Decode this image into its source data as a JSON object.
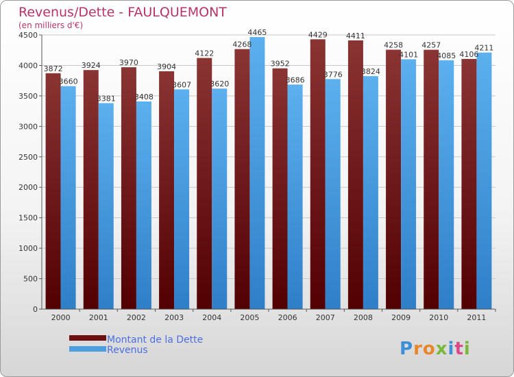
{
  "chart_data": {
    "type": "bar",
    "title": "Revenus/Dette - FAULQUEMONT",
    "subtitle": "(en milliers d'€)",
    "categories": [
      "2000",
      "2001",
      "2002",
      "2003",
      "2004",
      "2005",
      "2006",
      "2007",
      "2008",
      "2009",
      "2010",
      "2011"
    ],
    "series": [
      {
        "name": "Montant de la Dette",
        "color": "#6e1010",
        "values": [
          3872,
          3924,
          3970,
          3904,
          4122,
          4268,
          3952,
          4429,
          4411,
          4258,
          4257,
          4106
        ]
      },
      {
        "name": "Revenus",
        "color": "#4a9fe0",
        "values": [
          3660,
          3381,
          3408,
          3607,
          3620,
          4465,
          3686,
          3776,
          3824,
          4101,
          4085,
          4211
        ]
      }
    ],
    "ylim": [
      0,
      4500
    ],
    "yticks": [
      0,
      500,
      1000,
      1500,
      2000,
      2500,
      3000,
      3500,
      4000,
      4500
    ],
    "grid": true,
    "legend": "bottom-left",
    "xlabel": "",
    "ylabel": ""
  },
  "logo": {
    "text": "Proxiti"
  }
}
